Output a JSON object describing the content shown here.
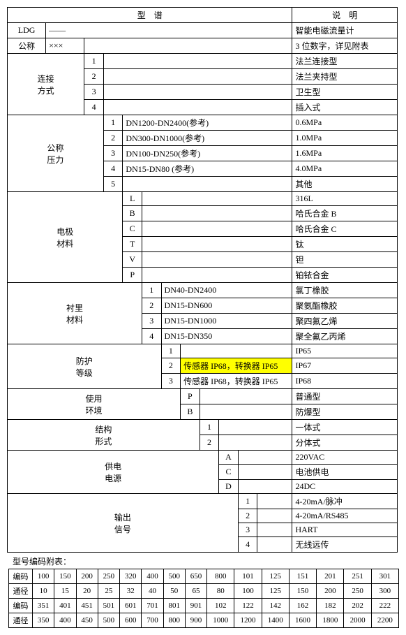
{
  "header": {
    "xingpu": "型　谱",
    "shuoming": "说　明"
  },
  "rows": {
    "ldg": {
      "label": "LDG",
      "dash": "——",
      "desc": "智能电磁流量计"
    },
    "gongcheng": {
      "label": "公称",
      "marks": "×××",
      "desc": "3 位数字，详见附表"
    },
    "lianjie": {
      "label": "连接\n方式",
      "items": [
        {
          "code": "1",
          "desc": "法兰连接型"
        },
        {
          "code": "2",
          "desc": "法兰夹持型"
        },
        {
          "code": "3",
          "desc": "卫生型"
        },
        {
          "code": "4",
          "desc": "插入式"
        }
      ]
    },
    "yali": {
      "label": "公称\n压力",
      "items": [
        {
          "code": "1",
          "mid": "DN1200-DN2400(参考)",
          "desc": "0.6MPa"
        },
        {
          "code": "2",
          "mid": "DN300-DN1000(参考)",
          "desc": "1.0MPa"
        },
        {
          "code": "3",
          "mid": "DN100-DN250(参考)",
          "desc": "1.6MPa"
        },
        {
          "code": "4",
          "mid": "DN15-DN80 (参考)",
          "desc": "4.0MPa"
        },
        {
          "code": "5",
          "mid": "",
          "desc": "其他"
        }
      ]
    },
    "dianji": {
      "label": "电极\n材料",
      "items": [
        {
          "code": "L",
          "desc": "316L"
        },
        {
          "code": "B",
          "desc": "哈氏合金 B"
        },
        {
          "code": "C",
          "desc": "哈氏合金 C"
        },
        {
          "code": "T",
          "desc": "钛"
        },
        {
          "code": "V",
          "desc": "钽"
        },
        {
          "code": "P",
          "desc": "铂铱合金"
        }
      ]
    },
    "chenli": {
      "label": "衬里\n材料",
      "items": [
        {
          "code": "1",
          "mid": "DN40-DN2400",
          "desc": "氯丁橡胶"
        },
        {
          "code": "2",
          "mid": "DN15-DN600",
          "desc": "聚氨酯橡胶"
        },
        {
          "code": "3",
          "mid": "DN15-DN1000",
          "desc": "聚四氟乙烯"
        },
        {
          "code": "4",
          "mid": "DN15-DN350",
          "desc": "聚全氟乙丙烯"
        }
      ]
    },
    "fanghu": {
      "label": "防护\n等级",
      "items": [
        {
          "code": "1",
          "mid": "",
          "desc": "IP65",
          "hl": false
        },
        {
          "code": "2",
          "mid": "传感器 IP68，转换器 IP65",
          "desc": "IP67",
          "hl": true
        },
        {
          "code": "3",
          "mid": "传感器 IP68，转换器 IP65",
          "desc": "IP68",
          "hl": false
        }
      ]
    },
    "shiyong": {
      "label": "使用\n环境",
      "items": [
        {
          "code": "P",
          "desc": "普通型"
        },
        {
          "code": "B",
          "desc": "防爆型"
        }
      ]
    },
    "jiegou": {
      "label": "结构\n形式",
      "items": [
        {
          "code": "1",
          "desc": "一体式"
        },
        {
          "code": "2",
          "desc": "分体式"
        }
      ]
    },
    "gongdian": {
      "label": "供电\n电源",
      "items": [
        {
          "code": "A",
          "desc": "220VAC"
        },
        {
          "code": "C",
          "desc": "电池供电"
        },
        {
          "code": "D",
          "desc": "24DC"
        }
      ]
    },
    "shuchu": {
      "label": "输出\n信号",
      "items": [
        {
          "code": "1",
          "desc": "4-20mA/脉冲"
        },
        {
          "code": "2",
          "desc": "4-20mA/RS485"
        },
        {
          "code": "3",
          "desc": "HART"
        },
        {
          "code": "4",
          "desc": "无线远传"
        }
      ]
    }
  },
  "footnote": "型号编码附表：",
  "appendix": {
    "r1": [
      "编码",
      "100",
      "150",
      "200",
      "250",
      "320",
      "400",
      "500",
      "650",
      "800",
      "101",
      "125",
      "151",
      "201",
      "251",
      "301"
    ],
    "r2": [
      "通径",
      "10",
      "15",
      "20",
      "25",
      "32",
      "40",
      "50",
      "65",
      "80",
      "100",
      "125",
      "150",
      "200",
      "250",
      "300"
    ],
    "r3": [
      "编码",
      "351",
      "401",
      "451",
      "501",
      "601",
      "701",
      "801",
      "901",
      "102",
      "122",
      "142",
      "162",
      "182",
      "202",
      "222"
    ],
    "r4": [
      "通径",
      "350",
      "400",
      "450",
      "500",
      "600",
      "700",
      "800",
      "900",
      "1000",
      "1200",
      "1400",
      "1600",
      "1800",
      "2000",
      "2200"
    ]
  },
  "colors": {
    "highlight": "#ffff00"
  }
}
